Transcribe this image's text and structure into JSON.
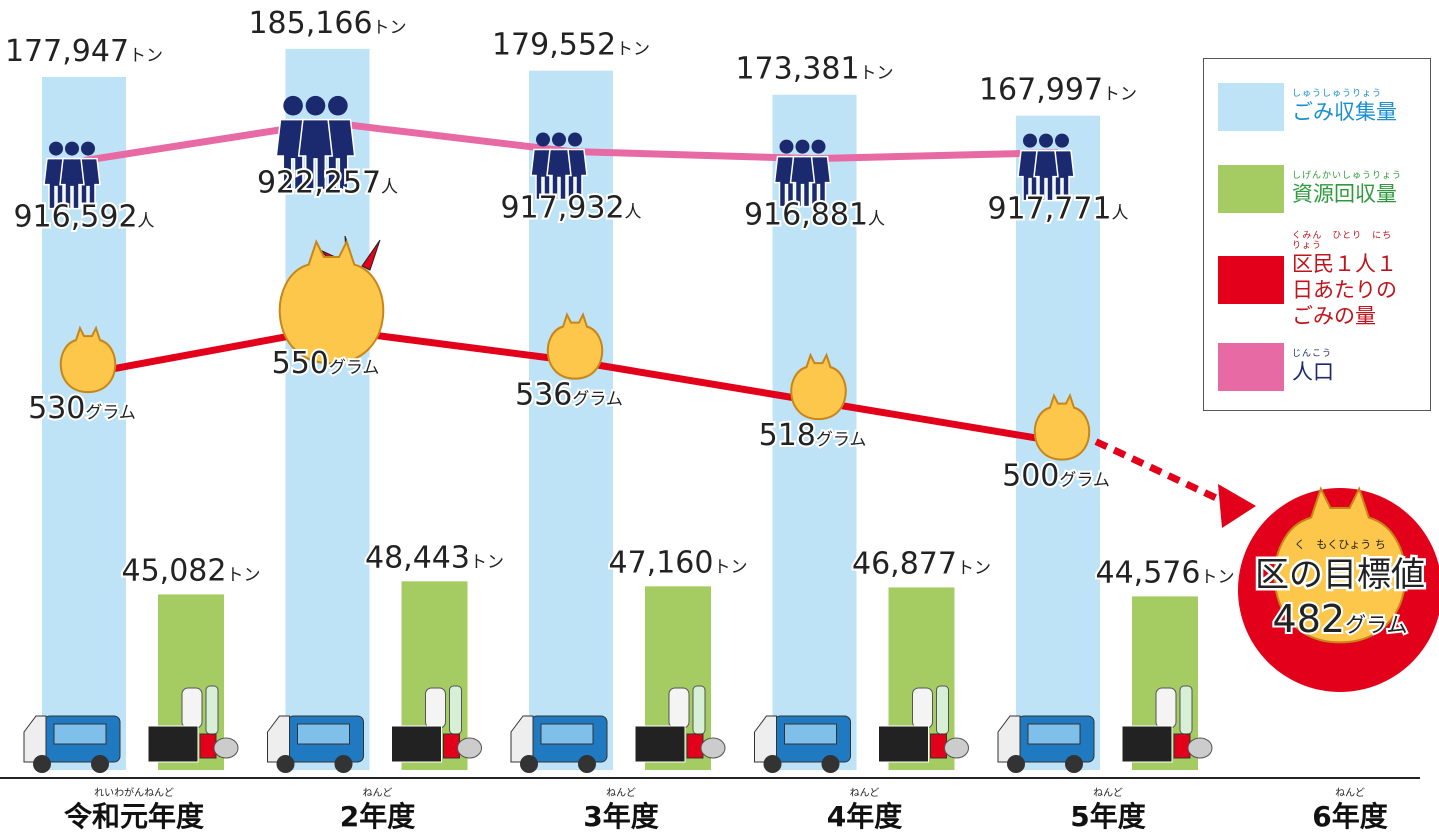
{
  "chart_data": {
    "type": "bar",
    "categories": [
      "令和元年度",
      "2年度",
      "3年度",
      "4年度",
      "5年度",
      "6年度"
    ],
    "category_readings": [
      "れいわがんねんど",
      "ねんど",
      "ねんど",
      "ねんど",
      "ねんど",
      "ねんど"
    ],
    "ylim": [
      0,
      190000
    ],
    "y2lim": [
      826000,
      936000
    ],
    "y3lim": [
      354,
      683
    ],
    "series": [
      {
        "name": "ごみ収集量",
        "name_reading": "しゅうしゅうりょう",
        "type": "bar",
        "color": "#bfe3f6",
        "text_color": "#1a8fd0",
        "unit": "トン",
        "values": [
          177947,
          185166,
          179552,
          173381,
          167997,
          null
        ],
        "value_labels": [
          "177,947",
          "185,166",
          "179,552",
          "173,381",
          "167,997",
          null
        ]
      },
      {
        "name": "資源回収量",
        "name_reading": "しげんかいしゅうりょう",
        "type": "bar",
        "color": "#a5cc62",
        "text_color": "#2e9a3c",
        "unit": "トン",
        "values": [
          45082,
          48443,
          47160,
          46877,
          44576,
          null
        ],
        "value_labels": [
          "45,082",
          "48,443",
          "47,160",
          "46,877",
          "44,576",
          null
        ]
      },
      {
        "name": "区民１人１日あたりのごみの量",
        "name_reading": "くみん　ひとり　にち　りょう",
        "type": "line",
        "axis": "y3",
        "color": "#e2001a",
        "text_color": "#c0141c",
        "unit": "グラム",
        "values": [
          530,
          550,
          536,
          518,
          500,
          null
        ]
      },
      {
        "name": "人口",
        "name_reading": "じんこう",
        "type": "line",
        "axis": "y2",
        "color": "#e86aa5",
        "text_color": "#1b2a6e",
        "unit": "人",
        "values": [
          916592,
          922257,
          917932,
          916881,
          917771,
          null
        ],
        "value_labels": [
          "916,592",
          "922,257",
          "917,932",
          "916,881",
          "917,771",
          null
        ]
      }
    ],
    "target": {
      "label": "区の目標値",
      "label_reading": "く　もくひょう ち",
      "value": 482,
      "color": "#e2001a"
    }
  }
}
